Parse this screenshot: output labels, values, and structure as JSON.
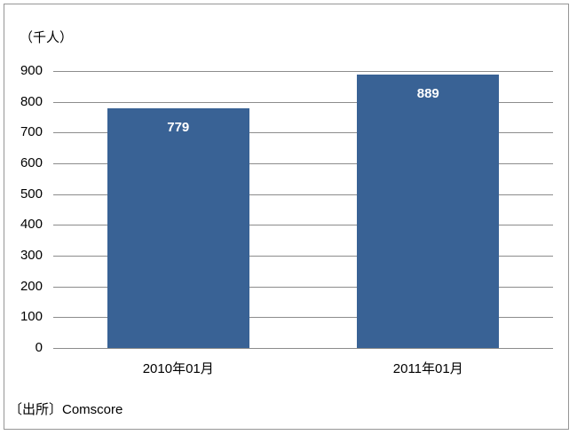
{
  "chart": {
    "unit_label": "（千人）",
    "source_label": "〔出所〕Comscore"
  },
  "chart_data": {
    "type": "bar",
    "categories": [
      "2010年01月",
      "2011年01月"
    ],
    "values": [
      779,
      889
    ],
    "title": "",
    "xlabel": "",
    "ylabel": "（千人）",
    "ylim": [
      0,
      900
    ],
    "ytick_interval": 100,
    "yticks": [
      0,
      100,
      200,
      300,
      400,
      500,
      600,
      700,
      800,
      900
    ],
    "grid": true,
    "legend": "none",
    "bar_color": "#396295",
    "value_label_color": "#FFFFFF",
    "gridline_color": "#8C8C8C",
    "value_labels_position": "inside-top"
  }
}
